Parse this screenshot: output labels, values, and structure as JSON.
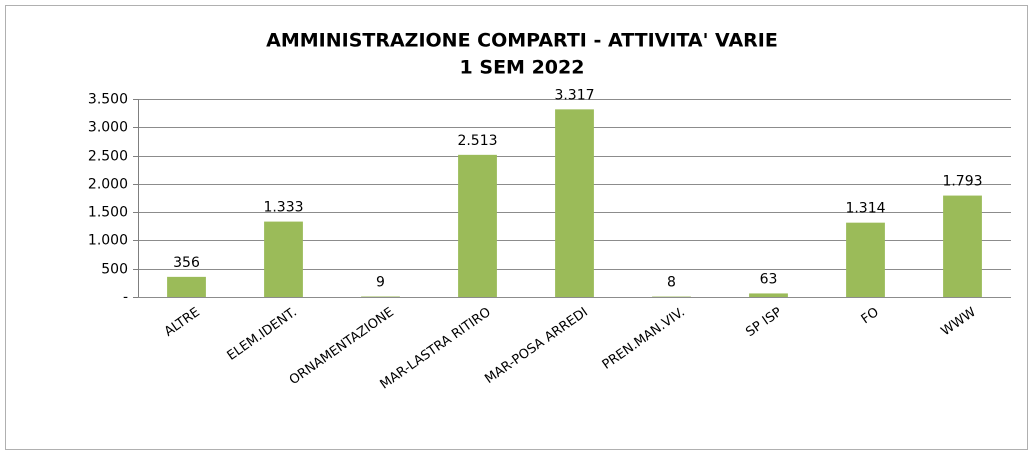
{
  "chart_data": {
    "type": "bar",
    "title": "AMMINISTRAZIONE COMPARTI - ATTIVITA' VARIE",
    "subtitle": "1 SEM 2022",
    "categories": [
      "ALTRE",
      "ELEM.IDENT.",
      "ORNAMENTAZIONE",
      "MAR-LASTRA RITIRO",
      "MAR-POSA ARREDI",
      "PREN.MAN.VIV.",
      "SP ISP",
      "FO",
      "WWW"
    ],
    "values": [
      356,
      1333,
      9,
      2513,
      3317,
      8,
      63,
      1314,
      1793
    ],
    "value_labels": [
      "356",
      "1.333",
      "9",
      "2.513",
      "3.317",
      "8",
      "63",
      "1.314",
      "1.793"
    ],
    "color": "#9bbb59",
    "ylim": [
      0,
      3500
    ],
    "yticks": [
      {
        "value": 0,
        "label": "-"
      },
      500,
      {
        "value": 1000,
        "label": "1.000"
      },
      {
        "value": 1500,
        "label": "1.500"
      },
      {
        "value": 2000,
        "label": "2.000"
      },
      {
        "value": 2500,
        "label": "2.500"
      },
      {
        "value": 3000,
        "label": "3.000"
      },
      {
        "value": 3500,
        "label": "3.500"
      }
    ],
    "grid": true
  }
}
